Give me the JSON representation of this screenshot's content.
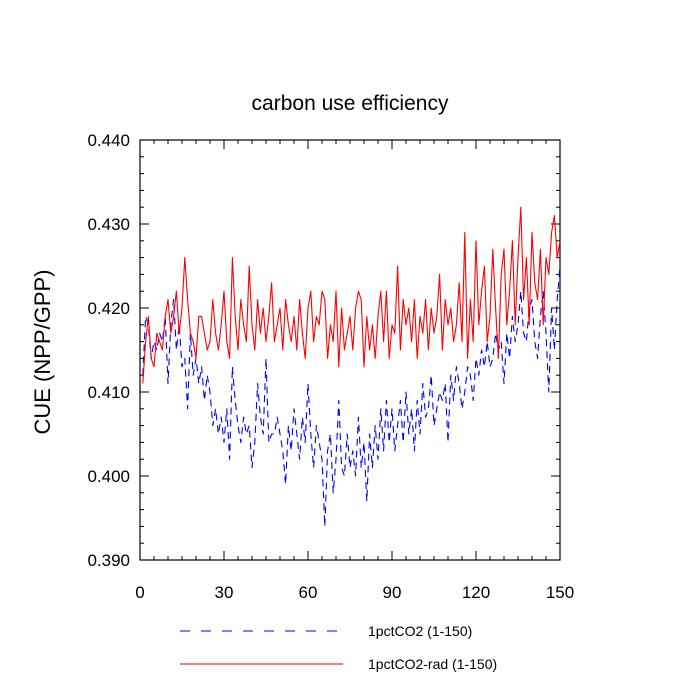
{
  "chart_data": {
    "type": "line",
    "title": "carbon use efficiency",
    "xlabel": "",
    "ylabel": "CUE  (NPP/GPP)",
    "xlim": [
      0,
      150
    ],
    "ylim": [
      0.39,
      0.44
    ],
    "x_ticks": [
      0,
      30,
      60,
      90,
      120,
      150
    ],
    "x_tick_labels": [
      "0",
      "30",
      "60",
      "90",
      "120",
      "150"
    ],
    "y_ticks": [
      0.39,
      0.4,
      0.41,
      0.42,
      0.43,
      0.44
    ],
    "y_tick_labels": [
      "0.390",
      "0.400",
      "0.410",
      "0.420",
      "0.430",
      "0.440"
    ],
    "grid": false,
    "legend_position": "bottom",
    "x": [
      1,
      2,
      3,
      4,
      5,
      6,
      7,
      8,
      9,
      10,
      11,
      12,
      13,
      14,
      15,
      16,
      17,
      18,
      19,
      20,
      21,
      22,
      23,
      24,
      25,
      26,
      27,
      28,
      29,
      30,
      31,
      32,
      33,
      34,
      35,
      36,
      37,
      38,
      39,
      40,
      41,
      42,
      43,
      44,
      45,
      46,
      47,
      48,
      49,
      50,
      51,
      52,
      53,
      54,
      55,
      56,
      57,
      58,
      59,
      60,
      61,
      62,
      63,
      64,
      65,
      66,
      67,
      68,
      69,
      70,
      71,
      72,
      73,
      74,
      75,
      76,
      77,
      78,
      79,
      80,
      81,
      82,
      83,
      84,
      85,
      86,
      87,
      88,
      89,
      90,
      91,
      92,
      93,
      94,
      95,
      96,
      97,
      98,
      99,
      100,
      101,
      102,
      103,
      104,
      105,
      106,
      107,
      108,
      109,
      110,
      111,
      112,
      113,
      114,
      115,
      116,
      117,
      118,
      119,
      120,
      121,
      122,
      123,
      124,
      125,
      126,
      127,
      128,
      129,
      130,
      131,
      132,
      133,
      134,
      135,
      136,
      137,
      138,
      139,
      140,
      141,
      142,
      143,
      144,
      145,
      146,
      147,
      148,
      149,
      150
    ],
    "series": [
      {
        "name": "1pctCO2 (1-150)",
        "color": "#0000ff",
        "dash": "dashed",
        "values": [
          0.412,
          0.419,
          0.418,
          0.414,
          0.416,
          0.415,
          0.417,
          0.416,
          0.419,
          0.411,
          0.418,
          0.421,
          0.415,
          0.418,
          0.413,
          0.414,
          0.408,
          0.417,
          0.412,
          0.414,
          0.411,
          0.413,
          0.409,
          0.412,
          0.41,
          0.406,
          0.408,
          0.405,
          0.407,
          0.404,
          0.408,
          0.402,
          0.413,
          0.409,
          0.406,
          0.404,
          0.407,
          0.405,
          0.406,
          0.401,
          0.404,
          0.411,
          0.407,
          0.405,
          0.414,
          0.404,
          0.405,
          0.405,
          0.407,
          0.405,
          0.403,
          0.399,
          0.406,
          0.403,
          0.408,
          0.405,
          0.402,
          0.407,
          0.404,
          0.411,
          0.405,
          0.401,
          0.406,
          0.404,
          0.402,
          0.394,
          0.403,
          0.405,
          0.398,
          0.402,
          0.409,
          0.401,
          0.4,
          0.405,
          0.401,
          0.403,
          0.4,
          0.407,
          0.401,
          0.404,
          0.397,
          0.405,
          0.401,
          0.406,
          0.402,
          0.408,
          0.403,
          0.409,
          0.404,
          0.408,
          0.403,
          0.406,
          0.409,
          0.404,
          0.41,
          0.405,
          0.408,
          0.403,
          0.409,
          0.405,
          0.411,
          0.407,
          0.408,
          0.412,
          0.406,
          0.408,
          0.41,
          0.409,
          0.411,
          0.404,
          0.412,
          0.409,
          0.413,
          0.411,
          0.408,
          0.41,
          0.413,
          0.412,
          0.409,
          0.414,
          0.412,
          0.415,
          0.413,
          0.416,
          0.413,
          0.414,
          0.417,
          0.415,
          0.416,
          0.411,
          0.417,
          0.414,
          0.419,
          0.416,
          0.418,
          0.422,
          0.417,
          0.416,
          0.42,
          0.421,
          0.416,
          0.414,
          0.419,
          0.422,
          0.417,
          0.41,
          0.42,
          0.415,
          0.421,
          0.425
        ]
      },
      {
        "name": "1pctCO2-rad (1-150)",
        "color": "#ff0000",
        "dash": "solid",
        "values": [
          0.411,
          0.416,
          0.419,
          0.414,
          0.413,
          0.417,
          0.416,
          0.415,
          0.419,
          0.421,
          0.417,
          0.419,
          0.422,
          0.417,
          0.42,
          0.426,
          0.421,
          0.417,
          0.416,
          0.414,
          0.419,
          0.419,
          0.417,
          0.415,
          0.416,
          0.421,
          0.417,
          0.415,
          0.418,
          0.422,
          0.416,
          0.414,
          0.426,
          0.419,
          0.415,
          0.421,
          0.418,
          0.416,
          0.425,
          0.418,
          0.415,
          0.421,
          0.417,
          0.42,
          0.416,
          0.419,
          0.423,
          0.416,
          0.418,
          0.42,
          0.415,
          0.421,
          0.418,
          0.416,
          0.419,
          0.415,
          0.421,
          0.417,
          0.414,
          0.42,
          0.422,
          0.416,
          0.419,
          0.418,
          0.422,
          0.421,
          0.414,
          0.418,
          0.416,
          0.422,
          0.413,
          0.42,
          0.415,
          0.417,
          0.419,
          0.415,
          0.42,
          0.422,
          0.421,
          0.413,
          0.419,
          0.415,
          0.418,
          0.414,
          0.419,
          0.422,
          0.416,
          0.422,
          0.414,
          0.418,
          0.417,
          0.425,
          0.415,
          0.421,
          0.418,
          0.42,
          0.416,
          0.421,
          0.414,
          0.419,
          0.417,
          0.421,
          0.415,
          0.42,
          0.417,
          0.419,
          0.424,
          0.415,
          0.421,
          0.418,
          0.42,
          0.416,
          0.418,
          0.423,
          0.416,
          0.429,
          0.414,
          0.421,
          0.416,
          0.428,
          0.418,
          0.422,
          0.425,
          0.416,
          0.419,
          0.427,
          0.42,
          0.414,
          0.424,
          0.427,
          0.418,
          0.422,
          0.428,
          0.418,
          0.426,
          0.432,
          0.421,
          0.426,
          0.418,
          0.429,
          0.423,
          0.421,
          0.427,
          0.418,
          0.426,
          0.424,
          0.429,
          0.431,
          0.426,
          0.428
        ]
      }
    ]
  }
}
